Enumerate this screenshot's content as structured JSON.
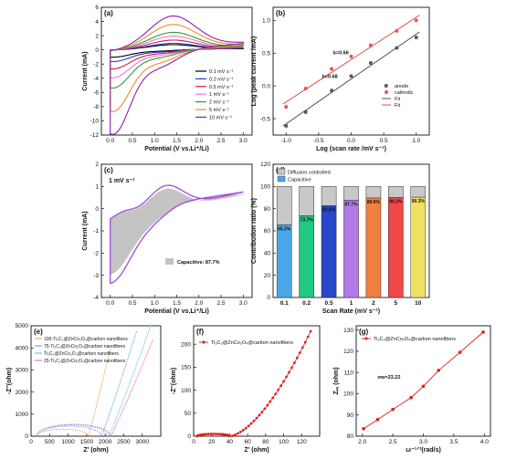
{
  "chart_data": [
    {
      "id": "a",
      "panel_label": "(a)",
      "type": "line",
      "xlabel": "Potential (V vs.Li⁺/Li)",
      "ylabel": "Current (mA)",
      "xlim": [
        -0.2,
        3.2
      ],
      "ylim": [
        -12,
        6
      ],
      "xticks": [
        0.0,
        0.5,
        1.0,
        1.5,
        2.0,
        2.5,
        3.0
      ],
      "yticks": [
        -12,
        -10,
        -8,
        -6,
        -4,
        -2,
        0,
        2,
        4,
        6
      ],
      "legend": "bottom-right",
      "series": [
        {
          "name": "0.1 mV s⁻¹",
          "color": "#000000",
          "peak_ox": 0.8,
          "peak_red": -1.0
        },
        {
          "name": "0.2 mV s⁻¹",
          "color": "#1f3fbf",
          "peak_ox": 1.0,
          "peak_red": -1.6
        },
        {
          "name": "0.5 mV s⁻¹",
          "color": "#d6154a",
          "peak_ox": 1.5,
          "peak_red": -2.6
        },
        {
          "name": "1 mV s⁻¹",
          "color": "#e07ad8",
          "peak_ox": 2.1,
          "peak_red": -3.8
        },
        {
          "name": "2 mV s⁻¹",
          "color": "#2e9a2e",
          "peak_ox": 2.7,
          "peak_red": -5.2
        },
        {
          "name": "5 mV s⁻¹",
          "color": "#f08c2a",
          "peak_ox": 3.9,
          "peak_red": -8.4
        },
        {
          "name": "10 mV s⁻¹",
          "color": "#8a1fb0",
          "peak_ox": 5.2,
          "peak_red": -11.5
        }
      ]
    },
    {
      "id": "b",
      "panel_label": "(b)",
      "type": "scatter",
      "xlabel": "Log (scan rate /mV s⁻¹)",
      "ylabel": "Log (peak current /mA)",
      "xlim": [
        -1.2,
        1.2
      ],
      "ylim": [
        -0.75,
        1.2
      ],
      "xticks": [
        -1.0,
        -0.5,
        0.0,
        0.5,
        1.0
      ],
      "yticks": [
        -0.5,
        0.0,
        0.5,
        1.0
      ],
      "legend": "top-right",
      "legend_entries": [
        "anode",
        "cathodic",
        "Fit",
        "Fit"
      ],
      "series": [
        {
          "name": "anode",
          "color": "#555555",
          "x": [
            -1.0,
            -0.7,
            -0.3,
            0.0,
            0.3,
            0.7,
            1.0
          ],
          "y": [
            -0.61,
            -0.4,
            -0.07,
            0.15,
            0.35,
            0.58,
            0.74
          ]
        },
        {
          "name": "cathodic",
          "color": "#f05050",
          "x": [
            -1.0,
            -0.7,
            -0.3,
            0.0,
            0.3,
            0.7,
            1.0
          ],
          "y": [
            -0.32,
            -0.04,
            0.26,
            0.45,
            0.62,
            0.84,
            1.0
          ]
        }
      ],
      "annotations": [
        "b=0.66",
        "b=0.68"
      ]
    },
    {
      "id": "c",
      "panel_label": "(c)",
      "type": "area",
      "xlabel": "Potential (V vs.Li⁺/Li)",
      "ylabel": "Current (mA)",
      "xlim": [
        -0.2,
        3.2
      ],
      "ylim": [
        -4,
        2
      ],
      "xticks": [
        0.0,
        0.5,
        1.0,
        1.5,
        2.0,
        2.5,
        3.0
      ],
      "yticks": [
        -4,
        -3,
        -2,
        -1,
        0,
        1,
        2
      ],
      "scan_label": "1 mV s⁻¹",
      "legend_label": "Capacitive:  87.7%",
      "outline_color": "#a64ad6",
      "fill_color": "#c4c4c4"
    },
    {
      "id": "d",
      "panel_label": "(d)",
      "type": "bar",
      "xlabel": "Scan Rate (mV s⁻¹)",
      "ylabel": "Contribution ratio (%)",
      "ylim": [
        0,
        120
      ],
      "yticks": [
        0,
        20,
        40,
        60,
        80,
        100,
        120
      ],
      "categories": [
        "0.1",
        "0.2",
        "0.5",
        "1",
        "2",
        "5",
        "10"
      ],
      "capacitive": [
        65.3,
        73.7,
        82.6,
        87.7,
        89.6,
        90.2,
        90.3
      ],
      "value_labels": [
        "65.3%",
        "73.7%",
        "82.6%",
        "87.7%",
        "89.6%",
        "90.2%",
        "90.3%"
      ],
      "colors": [
        "#4aa8e8",
        "#22c880",
        "#2848c8",
        "#b47ae8",
        "#f08040",
        "#f04848",
        "#f0e060"
      ],
      "diffusion_color": "#c8c8c8",
      "legend_entries": [
        "Diffusion controlled",
        "Capacitive"
      ],
      "legend": "top-left"
    },
    {
      "id": "e",
      "panel_label": "(e)",
      "type": "line",
      "xlabel": "Z'  (ohm)",
      "ylabel": "-Z''(ohm)",
      "xlim": [
        0,
        3500
      ],
      "ylim": [
        0,
        5000
      ],
      "xticks": [
        0,
        500,
        1000,
        1500,
        2000,
        2500,
        3000
      ],
      "yticks": [
        0,
        1000,
        2000,
        3000,
        4000,
        5000
      ],
      "legend": "top-left",
      "series": [
        {
          "name": "100-Ti₃C₂@ZnCo₂O₄@carbon nanofibers",
          "color": "#f5a05a",
          "arc_end": 1550,
          "arc_h": 320,
          "tail_x": 2150,
          "tail_y": 4050
        },
        {
          "name": "75-Ti₃C₂@ZnCo₂O₄@carbon nanofibers",
          "color": "#6aa0e8",
          "arc_end": 1900,
          "arc_h": 460,
          "tail_x": 2850,
          "tail_y": 4750
        },
        {
          "name": "Ti₃C₂@ZnCo₂O₄@carbon nanofibers",
          "color": "#60c8c8",
          "arc_end": 2100,
          "arc_h": 510,
          "tail_x": 3250,
          "tail_y": 5100
        },
        {
          "name": "25-Ti₃C₂@ZnCo₂O₄@carbon nanofibers",
          "color": "#e86adc",
          "arc_end": 2150,
          "arc_h": 540,
          "tail_x": 3300,
          "tail_y": 4400
        }
      ]
    },
    {
      "id": "f",
      "panel_label": "(f)",
      "type": "scatter",
      "xlabel": "Z'  (ohm)",
      "ylabel": "-Z''(ohm)",
      "xlim": [
        0,
        140
      ],
      "ylim": [
        0,
        240
      ],
      "xticks": [
        0,
        20,
        40,
        60,
        80,
        100,
        120
      ],
      "yticks": [
        0,
        50,
        100,
        150,
        200
      ],
      "legend": "top-left",
      "series": [
        {
          "name": "Ti₃C₂@ZnCo₂O₄@carbon nanofibers",
          "color": "#e02020"
        }
      ]
    },
    {
      "id": "g",
      "panel_label": "(g)",
      "type": "scatter",
      "xlabel": "ω⁻¹ᐟ²(rad/s)",
      "ylabel": "Zᵣₑ (ohm)",
      "xlim": [
        1.9,
        4.1
      ],
      "ylim": [
        80,
        132
      ],
      "xticks": [
        2.0,
        2.5,
        3.0,
        3.5,
        4.0
      ],
      "yticks": [
        80,
        90,
        100,
        110,
        120,
        130
      ],
      "legend": "top-left",
      "annotations": [
        "σw=23.22"
      ],
      "series": [
        {
          "name": "Ti₃C₂@ZnCo₂O₄@carbon nanofibers",
          "color": "#e02020",
          "x": [
            2.02,
            2.25,
            2.5,
            2.8,
            3.0,
            3.25,
            3.6,
            3.98
          ],
          "y": [
            83.5,
            87.8,
            92.6,
            98.2,
            103.5,
            111.0,
            119.5,
            129.0
          ]
        }
      ]
    }
  ]
}
